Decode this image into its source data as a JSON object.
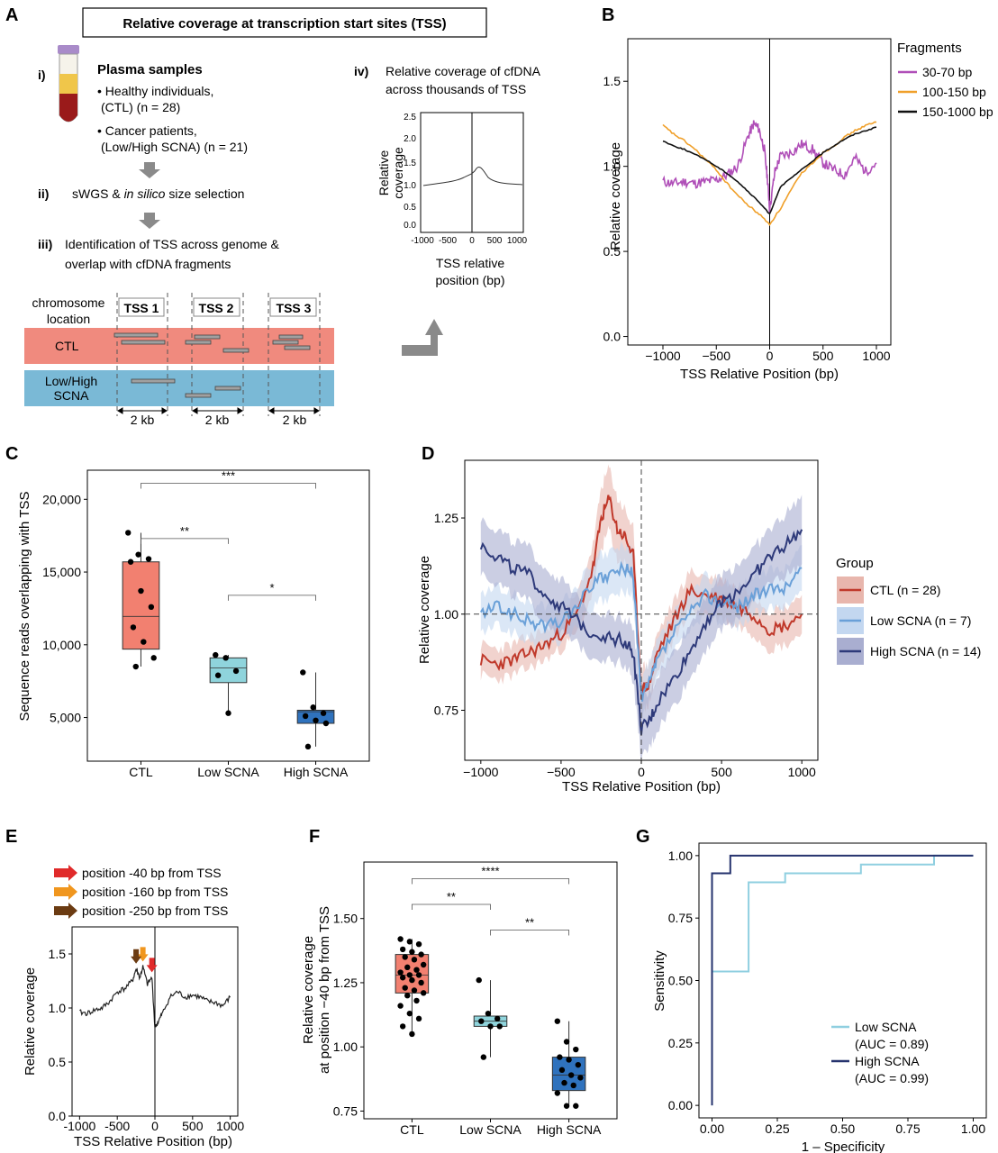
{
  "panel_labels": [
    "A",
    "B",
    "C",
    "D",
    "E",
    "F",
    "G"
  ],
  "panel_a": {
    "title": "Relative coverage at transcription start sites (TSS)",
    "step_i": "i)",
    "step_i_title": "Plasma samples",
    "step_i_line1": "• Healthy individuals,",
    "step_i_line2": "(CTL) (n = 28)",
    "step_i_line3": "• Cancer patients,",
    "step_i_line4": "(Low/High SCNA) (n = 21)",
    "step_ii": "ii)",
    "step_ii_text_a": "sWGS & ",
    "step_ii_text_b": "in silico",
    "step_ii_text_c": " size selection",
    "step_iii": "iii)",
    "step_iii_line1": "Identification of TSS across genome &",
    "step_iii_line2": "overlap with cfDNA fragments",
    "step_iv": "iv)",
    "step_iv_line1": "Relative coverage of cfDNA",
    "step_iv_line2": "across thousands of TSS",
    "chrom_label1": "chromosome",
    "chrom_label2": "location",
    "tss_labels": [
      "TSS 1",
      "TSS 2",
      "TSS 3"
    ],
    "ctl_label": "CTL",
    "scna_label1": "Low/High",
    "scna_label2": "SCNA",
    "kb_label": "2 kb",
    "inset_ylabel1": "Relative",
    "inset_ylabel2": "coverage",
    "inset_xlabel1": "TSS relative",
    "inset_xlabel2": "position (bp)",
    "inset_yticks": [
      "0.0",
      "0.5",
      "1.0",
      "1.5",
      "2.0",
      "2.5"
    ],
    "inset_xticks": [
      "-1000",
      "-500",
      "0",
      "500",
      "1000"
    ]
  },
  "chart_data": [
    {
      "panel": "B",
      "type": "line",
      "xlabel": "TSS Relative Position (bp)",
      "ylabel": "Relative coverage",
      "xlim": [
        -1000,
        1000
      ],
      "ylim": [
        -0.05,
        1.75
      ],
      "xticks": [
        "−1000",
        "−500",
        "0",
        "500",
        "1000"
      ],
      "yticks": [
        "0.0",
        "0.5",
        "1.0",
        "1.5"
      ],
      "legend_title": "Fragments",
      "series": [
        {
          "name": "30-70 bp",
          "color": "#b04fb8",
          "x": [
            -1000,
            -900,
            -800,
            -700,
            -600,
            -500,
            -400,
            -300,
            -200,
            -150,
            -100,
            -50,
            -20,
            0,
            50,
            100,
            200,
            300,
            400,
            500,
            600,
            700,
            800,
            900,
            1000
          ],
          "y": [
            0.91,
            0.9,
            0.91,
            0.9,
            0.91,
            0.92,
            0.95,
            1.0,
            1.18,
            1.25,
            1.22,
            1.1,
            0.92,
            0.75,
            0.97,
            1.06,
            1.08,
            1.13,
            1.1,
            1.02,
            0.98,
            0.95,
            1.05,
            0.97,
            1.02
          ]
        },
        {
          "name": "100-150 bp",
          "color": "#f0a02a",
          "x": [
            -1000,
            -900,
            -800,
            -700,
            -600,
            -500,
            -400,
            -300,
            -200,
            -100,
            0,
            100,
            200,
            300,
            400,
            500,
            600,
            700,
            800,
            900,
            1000
          ],
          "y": [
            1.24,
            1.19,
            1.15,
            1.1,
            1.04,
            0.98,
            0.9,
            0.83,
            0.77,
            0.72,
            0.66,
            0.75,
            0.86,
            0.96,
            1.02,
            1.08,
            1.12,
            1.17,
            1.21,
            1.24,
            1.26
          ]
        },
        {
          "name": "150-1000 bp",
          "color": "#111111",
          "x": [
            -1000,
            -900,
            -800,
            -700,
            -600,
            -500,
            -400,
            -300,
            -200,
            -100,
            0,
            100,
            200,
            300,
            400,
            500,
            600,
            700,
            800,
            900,
            1000
          ],
          "y": [
            1.15,
            1.12,
            1.1,
            1.07,
            1.04,
            1.0,
            0.96,
            0.91,
            0.85,
            0.79,
            0.72,
            0.88,
            0.93,
            0.98,
            1.03,
            1.08,
            1.12,
            1.16,
            1.19,
            1.21,
            1.23
          ]
        }
      ]
    },
    {
      "panel": "C",
      "type": "box",
      "ylabel": "Sequence reads overlapping with TSS",
      "categories": [
        "CTL",
        "Low SCNA",
        "High SCNA"
      ],
      "colors": [
        "#f28070",
        "#8fd4dc",
        "#2f72bd"
      ],
      "yticks": [
        "5,000",
        "10,000",
        "15,000",
        "20,000"
      ],
      "ylim": [
        2000,
        22000
      ],
      "boxes": [
        {
          "q1": 9700,
          "median": 11950,
          "q3": 15700,
          "whisker_low": 8500,
          "whisker_high": 17700
        },
        {
          "q1": 7400,
          "median": 8400,
          "q3": 9100,
          "whisker_low": 5300,
          "whisker_high": 9300
        },
        {
          "q1": 4600,
          "median": 5400,
          "q3": 5500,
          "whisker_low": 3000,
          "whisker_high": 8100
        }
      ],
      "points": [
        [
          17700,
          16200,
          15900,
          15700,
          13700,
          12600,
          11200,
          10200,
          9100,
          8500
        ],
        [
          9300,
          9100,
          8200,
          7900,
          5300
        ],
        [
          8100,
          5700,
          5300,
          5100,
          4800,
          4600,
          3000
        ]
      ],
      "significance": [
        {
          "pair": [
            0,
            1
          ],
          "label": "**",
          "y": 17300
        },
        {
          "pair": [
            1,
            2
          ],
          "label": "*",
          "y": 13400
        },
        {
          "pair": [
            0,
            2
          ],
          "label": "***",
          "y": 21100
        }
      ]
    },
    {
      "panel": "D",
      "type": "line",
      "xlabel": "TSS Relative Position (bp)",
      "ylabel": "Relative coverage",
      "xlim": [
        -1100,
        1100
      ],
      "ylim": [
        0.62,
        1.4
      ],
      "xticks": [
        "−1000",
        "−500",
        "0",
        "500",
        "1000"
      ],
      "yticks": [
        "0.75",
        "1.00",
        "1.25"
      ],
      "legend_title": "Group",
      "series": [
        {
          "name": "CTL (n = 28)",
          "color": "#c0392b",
          "band": "#e8b6ad",
          "x": [
            -1000,
            -900,
            -800,
            -700,
            -600,
            -500,
            -400,
            -300,
            -250,
            -200,
            -150,
            -100,
            -50,
            0,
            50,
            100,
            200,
            300,
            400,
            500,
            600,
            700,
            800,
            900,
            1000
          ],
          "y": [
            0.88,
            0.87,
            0.88,
            0.9,
            0.92,
            0.95,
            1.0,
            1.12,
            1.25,
            1.3,
            1.22,
            1.2,
            1.15,
            0.8,
            0.82,
            0.9,
            0.98,
            1.06,
            1.05,
            1.04,
            1.02,
            1.0,
            0.96,
            0.97,
            1.0
          ],
          "band_width": [
            0.04,
            0.04,
            0.04,
            0.04,
            0.04,
            0.04,
            0.05,
            0.06,
            0.08,
            0.08,
            0.08,
            0.07,
            0.07,
            0.06,
            0.05,
            0.05,
            0.05,
            0.05,
            0.05,
            0.05,
            0.05,
            0.05,
            0.05,
            0.05,
            0.05
          ]
        },
        {
          "name": "Low SCNA (n = 7)",
          "color": "#6aa0d8",
          "band": "#c3d7f0",
          "x": [
            -1000,
            -900,
            -800,
            -700,
            -600,
            -500,
            -400,
            -300,
            -200,
            -100,
            -50,
            0,
            50,
            100,
            200,
            300,
            400,
            500,
            600,
            700,
            800,
            900,
            1000
          ],
          "y": [
            1.0,
            1.02,
            1.0,
            0.98,
            0.97,
            0.98,
            1.02,
            1.08,
            1.1,
            1.12,
            1.1,
            0.78,
            0.82,
            0.88,
            0.95,
            1.0,
            1.05,
            1.03,
            1.02,
            1.05,
            1.06,
            1.07,
            1.12
          ],
          "band_width": [
            0.05,
            0.05,
            0.05,
            0.05,
            0.05,
            0.05,
            0.05,
            0.06,
            0.06,
            0.06,
            0.06,
            0.05,
            0.05,
            0.05,
            0.05,
            0.05,
            0.05,
            0.05,
            0.05,
            0.05,
            0.05,
            0.05,
            0.06
          ]
        },
        {
          "name": "High SCNA (n = 14)",
          "color": "#2e3a7a",
          "band": "#a9aed0",
          "x": [
            -1000,
            -900,
            -800,
            -700,
            -600,
            -500,
            -400,
            -300,
            -200,
            -100,
            -50,
            0,
            50,
            100,
            200,
            300,
            400,
            500,
            600,
            700,
            800,
            900,
            1000
          ],
          "y": [
            1.18,
            1.15,
            1.12,
            1.1,
            1.05,
            1.02,
            0.98,
            0.95,
            0.94,
            0.93,
            0.9,
            0.7,
            0.72,
            0.77,
            0.83,
            0.9,
            0.98,
            1.03,
            1.06,
            1.1,
            1.15,
            1.18,
            1.22
          ],
          "band_width": [
            0.07,
            0.07,
            0.07,
            0.07,
            0.07,
            0.07,
            0.06,
            0.06,
            0.06,
            0.06,
            0.07,
            0.08,
            0.07,
            0.07,
            0.07,
            0.07,
            0.07,
            0.07,
            0.07,
            0.07,
            0.07,
            0.08,
            0.09
          ]
        }
      ]
    },
    {
      "panel": "E",
      "type": "line",
      "xlabel": "TSS Relative Position (bp)",
      "ylabel": "Relative coverage",
      "xlim": [
        -1100,
        1100
      ],
      "ylim": [
        0.0,
        1.75
      ],
      "xticks": [
        "-1000",
        "-500",
        "0",
        "500",
        "1000"
      ],
      "yticks": [
        "0.0",
        "0.5",
        "1.0",
        "1.5"
      ],
      "legend": [
        {
          "label": "position -40 bp from TSS",
          "color": "#e02a2a"
        },
        {
          "label": "position -160 bp from TSS",
          "color": "#f0961e"
        },
        {
          "label": "position -250 bp from TSS",
          "color": "#6b3b12"
        }
      ],
      "series": [
        {
          "name": "",
          "color": "#222222",
          "x": [
            -1000,
            -900,
            -800,
            -700,
            -600,
            -500,
            -400,
            -300,
            -250,
            -200,
            -160,
            -100,
            -40,
            0,
            50,
            100,
            200,
            300,
            400,
            500,
            600,
            700,
            800,
            900,
            1000
          ],
          "y": [
            0.96,
            0.95,
            0.98,
            1.0,
            1.06,
            1.15,
            1.18,
            1.25,
            1.36,
            1.28,
            1.38,
            1.22,
            1.28,
            0.82,
            0.88,
            0.95,
            1.1,
            1.15,
            1.1,
            1.12,
            1.1,
            1.06,
            1.05,
            1.02,
            1.1
          ]
        }
      ]
    },
    {
      "panel": "F",
      "type": "box",
      "ylabel_line1": "Relative coverage",
      "ylabel_line2": "at position −40 bp from TSS",
      "categories": [
        "CTL",
        "Low SCNA",
        "High SCNA"
      ],
      "colors": [
        "#f28070",
        "#8fd4dc",
        "#2f72bd"
      ],
      "yticks": [
        "0.75",
        "1.00",
        "1.25",
        "1.50"
      ],
      "ylim": [
        0.72,
        1.72
      ],
      "boxes": [
        {
          "q1": 1.21,
          "median": 1.28,
          "q3": 1.36,
          "whisker_low": 1.05,
          "whisker_high": 1.42
        },
        {
          "q1": 1.08,
          "median": 1.1,
          "q3": 1.12,
          "whisker_low": 0.96,
          "whisker_high": 1.26
        },
        {
          "q1": 0.83,
          "median": 0.89,
          "q3": 0.96,
          "whisker_low": 0.77,
          "whisker_high": 1.1
        }
      ],
      "points": [
        [
          1.42,
          1.41,
          1.4,
          1.38,
          1.37,
          1.36,
          1.35,
          1.34,
          1.32,
          1.31,
          1.3,
          1.29,
          1.28,
          1.28,
          1.27,
          1.26,
          1.25,
          1.23,
          1.22,
          1.21,
          1.2,
          1.18,
          1.16,
          1.13,
          1.11,
          1.08,
          1.05
        ],
        [
          1.26,
          1.13,
          1.11,
          1.1,
          1.08,
          1.08,
          0.96
        ],
        [
          1.1,
          1.02,
          0.99,
          0.96,
          0.95,
          0.93,
          0.91,
          0.89,
          0.88,
          0.86,
          0.85,
          0.82,
          0.77,
          0.77
        ]
      ],
      "significance": [
        {
          "pair": [
            0,
            1
          ],
          "label": "**",
          "y": 1.555
        },
        {
          "pair": [
            1,
            2
          ],
          "label": "**",
          "y": 1.455
        },
        {
          "pair": [
            0,
            2
          ],
          "label": "****",
          "y": 1.655
        }
      ]
    },
    {
      "panel": "G",
      "type": "line",
      "xlabel": "1 – Specificity",
      "ylabel": "Sensitivity",
      "xlim": [
        -0.05,
        1.05
      ],
      "ylim": [
        -0.05,
        1.05
      ],
      "xticks": [
        "0.00",
        "0.25",
        "0.50",
        "0.75",
        "1.00"
      ],
      "yticks": [
        "0.00",
        "0.25",
        "0.50",
        "0.75",
        "1.00"
      ],
      "series": [
        {
          "name": "Low SCNA\n(AUC = 0.89)",
          "color": "#8fcfe0",
          "x": [
            0,
            0,
            0.14,
            0.14,
            0.28,
            0.28,
            0.57,
            0.57,
            0.85,
            0.85,
            1.0
          ],
          "y": [
            0,
            0.536,
            0.536,
            0.893,
            0.893,
            0.929,
            0.929,
            0.964,
            0.964,
            1.0,
            1.0
          ]
        },
        {
          "name": "High SCNA\n(AUC = 0.99)",
          "color": "#26336e",
          "x": [
            0,
            0,
            0.07,
            0.07,
            1.0
          ],
          "y": [
            0,
            0.929,
            0.929,
            1.0,
            1.0
          ]
        }
      ],
      "legend": [
        "Low SCNA",
        "(AUC = 0.89)",
        "High SCNA",
        "(AUC = 0.99)"
      ]
    }
  ]
}
